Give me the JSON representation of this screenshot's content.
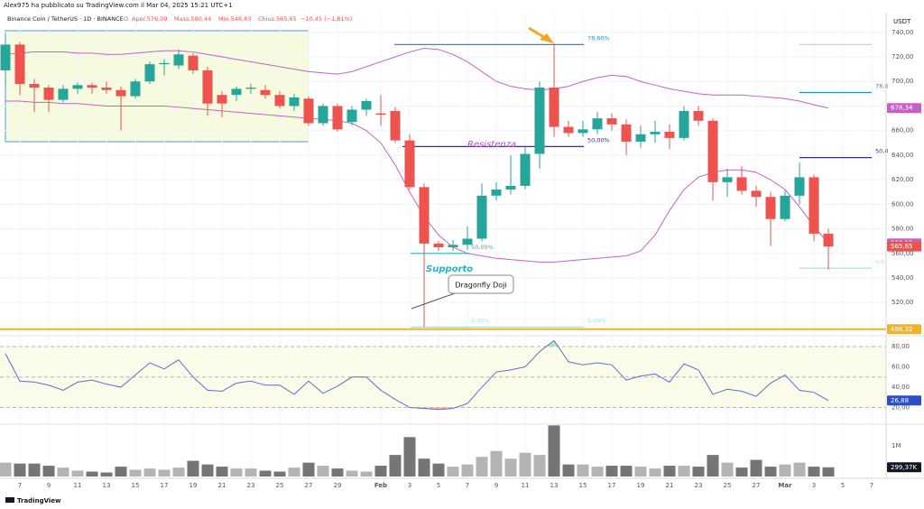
{
  "header": {
    "author": "Alex975 ha pubblicato su TradingView.com il Mar 04, 2025 15:21 UTC+1",
    "symbol": "Binance Coin / TetherUS · 1D · BINANCE",
    "status": "O",
    "open": "Aper.576,09",
    "high": "Mass.580,44",
    "low": "Min.546,83",
    "close": "Chius.565,65",
    "change": "−10,45 (−1,81%)"
  },
  "footer": {
    "brand": "TradingView"
  },
  "chart_data": {
    "type": "candlestick",
    "currency": "USDT",
    "up_color": "#26a69a",
    "down_color": "#ef5350",
    "grid": true,
    "categories": [
      null,
      "7",
      null,
      "9",
      null,
      "11",
      null,
      "13",
      null,
      "15",
      null,
      "17",
      null,
      "19",
      null,
      "21",
      null,
      "23",
      null,
      "25",
      null,
      "27",
      null,
      "29",
      null,
      null,
      "Feb",
      null,
      "3",
      null,
      "5",
      null,
      "7",
      null,
      "9",
      null,
      "11",
      null,
      "13",
      null,
      "15",
      null,
      "17",
      null,
      "19",
      null,
      "21",
      null,
      "23",
      null,
      "25",
      null,
      "27",
      null,
      "Mar",
      null,
      "3",
      null,
      "5",
      null,
      "7"
    ],
    "open": [
      709,
      730,
      698,
      695,
      685,
      694,
      697,
      695,
      693,
      688,
      700,
      714,
      713,
      721,
      709,
      689,
      689,
      694,
      693,
      689,
      680,
      686,
      666,
      680,
      667,
      677,
      674,
      676,
      652,
      614,
      568,
      565,
      567,
      572,
      607,
      612,
      615,
      641,
      695,
      663,
      658,
      661,
      670,
      665,
      651,
      657,
      659,
      654,
      676,
      668,
      618,
      622,
      611,
      606,
      588,
      607,
      622,
      576.09,
      null,
      null,
      null
    ],
    "high": [
      733,
      732,
      702,
      697,
      697,
      699,
      699,
      700,
      696,
      702,
      716,
      718,
      726,
      723,
      712,
      692,
      696,
      698,
      697,
      692,
      690,
      688,
      682,
      682,
      680,
      686,
      689,
      679,
      657,
      617,
      570,
      571,
      582,
      617,
      618,
      640,
      647,
      700,
      731,
      668,
      668,
      675,
      674,
      669,
      664,
      668,
      665,
      680,
      680,
      670,
      629,
      631,
      615,
      610,
      611,
      634,
      624,
      580.44,
      null,
      null,
      null
    ],
    "low": [
      697,
      689,
      675,
      675,
      683,
      690,
      690,
      690,
      660,
      686,
      698,
      705,
      710,
      706,
      672,
      671,
      684,
      690,
      686,
      678,
      676,
      664,
      664,
      659,
      664,
      672,
      664,
      650,
      612,
      500,
      562,
      562,
      563,
      570,
      603,
      608,
      612,
      629,
      655,
      655,
      655,
      657,
      660,
      640,
      646,
      650,
      645,
      652,
      664,
      603,
      606,
      608,
      598,
      566,
      586,
      600,
      570,
      546.83,
      null,
      null,
      null
    ],
    "close": [
      730,
      698,
      695,
      685,
      694,
      697,
      695,
      693,
      688,
      700,
      714,
      715,
      722,
      709,
      682,
      682,
      694,
      695,
      689,
      680,
      687,
      666,
      680,
      661,
      677,
      684,
      673,
      652,
      614,
      568,
      565,
      567,
      572,
      607,
      612,
      615,
      641,
      695,
      663,
      658,
      661,
      670,
      665,
      651,
      657,
      659,
      654,
      676,
      668,
      618,
      622,
      611,
      606,
      588,
      607,
      622,
      576.09,
      565.65,
      null,
      null,
      null
    ],
    "close_labels": [
      null,
      null,
      null,
      null,
      null,
      null,
      null,
      null,
      null,
      null,
      null,
      null,
      null,
      null,
      null,
      null,
      null,
      null,
      null,
      null,
      null,
      null,
      null,
      null,
      null,
      null,
      null,
      null,
      null,
      null,
      null,
      null,
      null,
      null,
      null,
      null,
      null,
      null,
      null,
      null,
      null,
      null,
      null,
      null,
      null,
      null,
      null,
      null,
      null,
      null,
      null,
      null,
      null,
      null,
      null,
      null,
      null,
      "565,65",
      null,
      null,
      null
    ],
    "ylim": [
      493,
      756
    ],
    "yticks": [
      {
        "value": 740,
        "label": "740,00"
      },
      {
        "value": 720,
        "label": "720,00"
      },
      {
        "value": 700,
        "label": "700,00"
      },
      {
        "value": 680,
        "label": "680,00"
      },
      {
        "value": 660,
        "label": "660,00"
      },
      {
        "value": 640,
        "label": "640,00"
      },
      {
        "value": 620,
        "label": "620,00"
      },
      {
        "value": 600,
        "label": "600,00"
      },
      {
        "value": 580,
        "label": "580,00"
      },
      {
        "value": 560,
        "label": "560,00"
      },
      {
        "value": 540,
        "label": "540,00"
      },
      {
        "value": 520,
        "label": "520,00"
      }
    ],
    "bands": [
      {
        "color": "#c462c4",
        "values": [
          722,
          723,
          724,
          724,
          724,
          723,
          723,
          722,
          722,
          723,
          724,
          725,
          725,
          724,
          722,
          720,
          718,
          716,
          714,
          712,
          710,
          708,
          707,
          706,
          708,
          712,
          716,
          720,
          724,
          727,
          726,
          722,
          716,
          708,
          700,
          696,
          694,
          693,
          694,
          696,
          700,
          703,
          705,
          704,
          700,
          697,
          694,
          692,
          690,
          689,
          689,
          689,
          688,
          687,
          686,
          684,
          681,
          678.34,
          null,
          null,
          null
        ],
        "value_labels": [
          null,
          null,
          null,
          null,
          null,
          null,
          null,
          null,
          null,
          null,
          null,
          null,
          null,
          null,
          null,
          null,
          null,
          null,
          null,
          null,
          null,
          null,
          null,
          null,
          null,
          null,
          null,
          null,
          null,
          null,
          null,
          null,
          null,
          null,
          null,
          null,
          null,
          null,
          null,
          null,
          null,
          null,
          null,
          null,
          null,
          null,
          null,
          null,
          null,
          null,
          null,
          null,
          null,
          null,
          null,
          null,
          null,
          "678,34",
          null,
          null,
          null
        ]
      },
      {
        "color": "#c462c4",
        "values": [
          684,
          684,
          683,
          683,
          682,
          682,
          681,
          680,
          680,
          680,
          680,
          680,
          679,
          678,
          677,
          676,
          675,
          674,
          673,
          672,
          671,
          670,
          669,
          668,
          666,
          660,
          650,
          632,
          610,
          590,
          575,
          565,
          560,
          558,
          556,
          555,
          554,
          553,
          553,
          554,
          555,
          556,
          557,
          558,
          562,
          575,
          595,
          612,
          622,
          626,
          628,
          628,
          626,
          620,
          612,
          598,
          582,
          568.15,
          null,
          null,
          null
        ],
        "value_labels": [
          null,
          null,
          null,
          null,
          null,
          null,
          null,
          null,
          null,
          null,
          null,
          null,
          null,
          null,
          null,
          null,
          null,
          null,
          null,
          null,
          null,
          null,
          null,
          null,
          null,
          null,
          null,
          null,
          null,
          null,
          null,
          null,
          null,
          null,
          null,
          null,
          null,
          null,
          null,
          null,
          null,
          null,
          null,
          null,
          null,
          null,
          null,
          null,
          null,
          null,
          null,
          null,
          null,
          null,
          null,
          null,
          null,
          "568,15",
          null,
          null,
          null
        ]
      }
    ],
    "levels": [
      {
        "value": 498.32,
        "label": "498,32",
        "color": "#f0b429"
      }
    ],
    "fib_lines": [
      {
        "value": 730,
        "label": "78,60%",
        "color": "#2a8fc8"
      },
      {
        "value": 647,
        "label": "50,00%",
        "color": "#3f2d7e"
      },
      {
        "value": 500,
        "label": "0,00%",
        "color": "#a8e0e4"
      },
      {
        "value": 560,
        "label": "50,00%",
        "color": "#2ab3bd"
      },
      {
        "value": 500,
        "label": "0,00%",
        "color": "#a8e0e4"
      },
      {
        "value": 730,
        "color": "#a8e0e4"
      },
      {
        "value": 691,
        "label": "78,6",
        "color": "#2a8fc8"
      },
      {
        "value": 638,
        "label": "50,0",
        "color": "#3f2d7e"
      },
      {
        "value": 548,
        "label": "0,0",
        "color": "#a8e0e4"
      }
    ],
    "annotations": {
      "resistance": "Resistenza",
      "support": "Supporto",
      "pattern": "Dragonfly Doji"
    },
    "rsi": {
      "color": "#5a6fd6",
      "values": [
        73,
        46,
        45,
        42,
        37,
        45,
        47,
        43,
        40,
        52,
        64,
        58,
        67,
        50,
        37,
        36,
        44,
        46,
        42,
        42,
        33,
        46,
        34,
        41,
        50,
        50,
        37,
        28,
        20,
        19,
        18,
        19,
        24,
        40,
        55,
        57,
        60,
        75,
        86,
        65,
        62,
        64,
        62,
        47,
        51,
        53,
        45,
        63,
        57,
        33,
        38,
        36,
        31,
        44,
        52,
        37,
        35,
        26.88,
        null,
        null,
        null
      ],
      "value_labels": [
        null,
        null,
        null,
        null,
        null,
        null,
        null,
        null,
        null,
        null,
        null,
        null,
        null,
        null,
        null,
        null,
        null,
        null,
        null,
        null,
        null,
        null,
        null,
        null,
        null,
        null,
        null,
        null,
        null,
        null,
        null,
        null,
        null,
        null,
        null,
        null,
        null,
        null,
        null,
        null,
        null,
        null,
        null,
        null,
        null,
        null,
        null,
        null,
        null,
        null,
        null,
        null,
        null,
        null,
        null,
        null,
        null,
        "26,88",
        null,
        null,
        null
      ],
      "label_color": "#2d4fc4",
      "ylim": [
        3.6,
        90.7
      ],
      "yticks": [
        {
          "value": 80,
          "label": "80,00"
        },
        {
          "value": 60,
          "label": "60,00"
        },
        {
          "value": 40,
          "label": "40,00"
        },
        {
          "value": 20,
          "label": "20,00"
        }
      ],
      "levels": [
        20,
        50,
        80
      ]
    },
    "volume": {
      "up_color": "#b4b4b4",
      "down_color": "#757575",
      "values": [
        450000,
        420000,
        420000,
        350000,
        290000,
        190000,
        160000,
        130000,
        320000,
        220000,
        260000,
        220000,
        290000,
        510000,
        390000,
        320000,
        260000,
        260000,
        190000,
        160000,
        290000,
        450000,
        350000,
        260000,
        190000,
        160000,
        350000,
        700000,
        1280000,
        580000,
        420000,
        320000,
        390000,
        640000,
        830000,
        580000,
        770000,
        700000,
        1660000,
        390000,
        390000,
        320000,
        350000,
        350000,
        320000,
        260000,
        350000,
        350000,
        320000,
        700000,
        450000,
        290000,
        540000,
        320000,
        390000,
        450000,
        320000,
        299370,
        null,
        null,
        null
      ],
      "value_labels": [
        null,
        null,
        null,
        null,
        null,
        null,
        null,
        null,
        null,
        null,
        null,
        null,
        null,
        null,
        null,
        null,
        null,
        null,
        null,
        null,
        null,
        null,
        null,
        null,
        null,
        null,
        null,
        null,
        null,
        null,
        null,
        null,
        null,
        null,
        null,
        null,
        null,
        null,
        null,
        null,
        null,
        null,
        null,
        null,
        null,
        null,
        null,
        null,
        null,
        null,
        null,
        null,
        null,
        null,
        null,
        null,
        null,
        "299,37K",
        null,
        null,
        null
      ],
      "ylim": [
        0,
        1700000
      ],
      "yticks": [
        {
          "value": 1000000,
          "label": "1M"
        }
      ]
    }
  }
}
